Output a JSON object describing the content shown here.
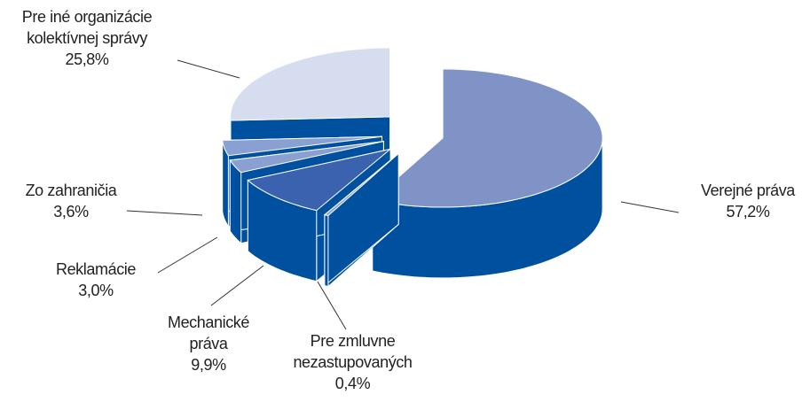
{
  "chart_data": {
    "type": "pie",
    "categories": [
      "Verejné práva",
      "Pre zmluvne nezastupovaných",
      "Mechanické práva",
      "Reklamácie",
      "Zo zahraničia",
      "Pre iné organizácie kolektívnej správy"
    ],
    "values": [
      57.2,
      0.4,
      9.9,
      3.0,
      3.6,
      25.8
    ],
    "value_labels": [
      "57,2%",
      "0,4%",
      "9,9%",
      "3,0%",
      "3,6%",
      "25,8%"
    ],
    "colors": [
      "#8093c6",
      "#8a9fd2",
      "#3a62ae",
      "#8a9fd2",
      "#8a9fd2",
      "#d6ddee"
    ],
    "side_color": "#0050a0"
  }
}
